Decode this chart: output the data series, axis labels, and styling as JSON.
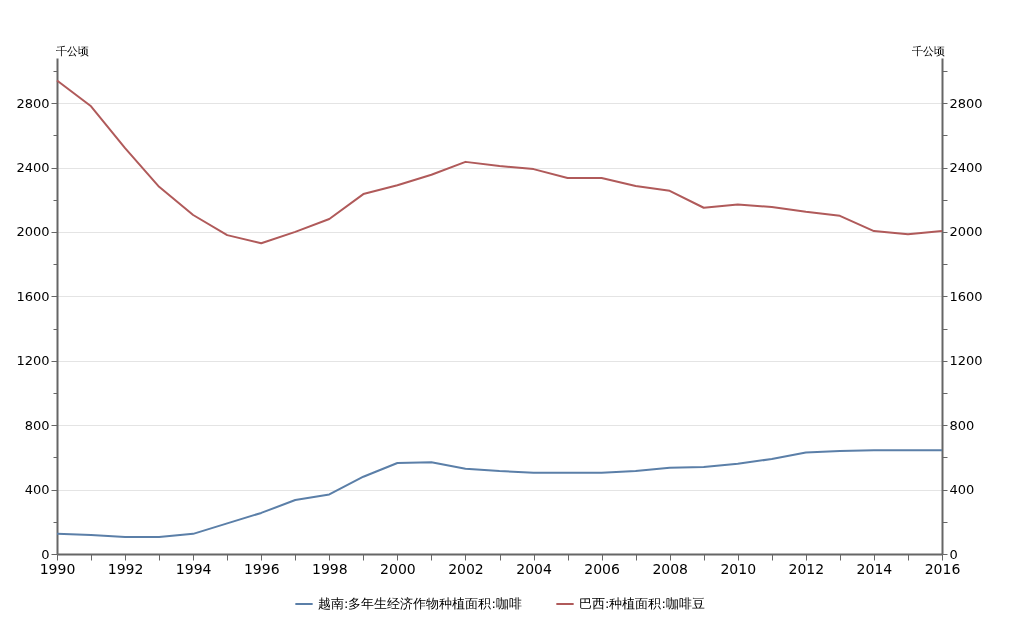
{
  "chart_data": {
    "type": "line",
    "ylabel": "千公顷",
    "y2label": "千公顷",
    "x": [
      1990,
      1991,
      1992,
      1993,
      1994,
      1995,
      1996,
      1997,
      1998,
      1999,
      2000,
      2001,
      2002,
      2003,
      2004,
      2005,
      2006,
      2007,
      2008,
      2009,
      2010,
      2011,
      2012,
      2013,
      2014,
      2015,
      2016
    ],
    "series": [
      {
        "name": "越南:多年生经济作物种植面积:咖啡",
        "color": "#5b7fa8",
        "values": [
          125,
          118,
          105,
          105,
          125,
          190,
          255,
          335,
          370,
          480,
          565,
          570,
          530,
          515,
          505,
          505,
          505,
          515,
          535,
          540,
          560,
          590,
          630,
          640,
          645,
          645,
          645
        ]
      },
      {
        "name": "巴西:种植面积:咖啡豆",
        "color": "#b05a5a",
        "values": [
          2940,
          2780,
          2520,
          2280,
          2105,
          1980,
          1930,
          2000,
          2080,
          2235,
          2290,
          2355,
          2435,
          2410,
          2390,
          2335,
          2335,
          2285,
          2255,
          2150,
          2170,
          2155,
          2125,
          2100,
          2005,
          1985,
          2005
        ]
      }
    ],
    "xlim": [
      1990,
      2016
    ],
    "xticks": [
      1990,
      {
        "value": 1991,
        "label": null
      },
      1992,
      {
        "value": 1993,
        "label": null
      },
      1994,
      {
        "value": 1995,
        "label": null
      },
      1996,
      {
        "value": 1997,
        "label": null
      },
      1998,
      {
        "value": 1999,
        "label": null
      },
      2000,
      {
        "value": 2001,
        "label": null
      },
      2002,
      {
        "value": 2003,
        "label": null
      },
      2004,
      {
        "value": 2005,
        "label": null
      },
      2006,
      {
        "value": 2007,
        "label": null
      },
      2008,
      {
        "value": 2009,
        "label": null
      },
      2010,
      {
        "value": 2011,
        "label": null
      },
      2012,
      {
        "value": 2013,
        "label": null
      },
      2014,
      {
        "value": 2015,
        "label": null
      },
      2016
    ],
    "ylim": [
      0,
      3080
    ],
    "yticks": [
      0,
      {
        "value": 200,
        "label": null
      },
      400,
      {
        "value": 600,
        "label": null
      },
      800,
      {
        "value": 1000,
        "label": null
      },
      1200,
      {
        "value": 1400,
        "label": null
      },
      1600,
      {
        "value": 1800,
        "label": null
      },
      2000,
      {
        "value": 2200,
        "label": null
      },
      2400,
      {
        "value": 2600,
        "label": null
      },
      2800,
      {
        "value": 3000,
        "label": null
      }
    ],
    "y2lim": [
      0,
      3080
    ],
    "y2ticks": [
      0,
      {
        "value": 200,
        "label": null
      },
      400,
      {
        "value": 600,
        "label": null
      },
      800,
      {
        "value": 1000,
        "label": null
      },
      1200,
      {
        "value": 1400,
        "label": null
      },
      1600,
      {
        "value": 1800,
        "label": null
      },
      2000,
      {
        "value": 2200,
        "label": null
      },
      2400,
      {
        "value": 2600,
        "label": null
      },
      2800,
      {
        "value": 3000,
        "label": null
      }
    ],
    "grid": "y",
    "legend": "bottom",
    "marker": "none",
    "line_style": "solid"
  }
}
